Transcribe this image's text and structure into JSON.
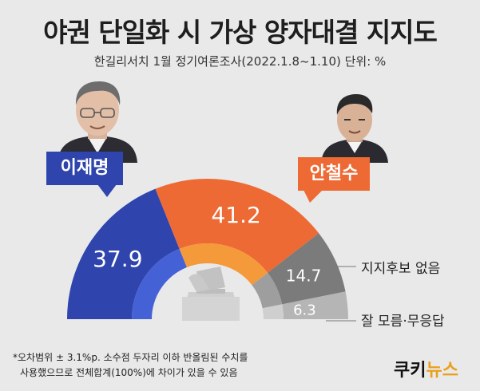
{
  "header": {
    "title": "야권 단일화 시 가상 양자대결 지지도",
    "subtitle": "한길리서치 1월 정기여론조사(2022.1.8~1.10) 단위: %"
  },
  "candidates": {
    "left_name": "이재명",
    "right_name": "안철수"
  },
  "chart_data": {
    "type": "pie",
    "style": "half-donut",
    "categories": [
      "이재명",
      "안철수",
      "지지후보 없음",
      "잘 모름·무응답"
    ],
    "values": [
      37.9,
      41.2,
      14.7,
      6.3
    ],
    "value_labels": [
      "37.9",
      "41.2",
      "14.7",
      "6.3"
    ],
    "colors": [
      "#2f45ad",
      "#ee6a34",
      "#7b7b7b",
      "#b5b5b5"
    ],
    "inner_colors": [
      "#4561d6",
      "#f59a3a",
      "#9e9e9e",
      "#cfcfcf"
    ],
    "external_labels": [
      "",
      "",
      "지지후보 없음",
      "잘 모름·무응답"
    ],
    "unit": "%"
  },
  "footnote": {
    "line1": "*오차범위 ± 3.1%p. 소수점 두자리 이하 반올림된 수치를",
    "line2": "사용했으므로 전체합계(100%)에 차이가 있을 수 있음"
  },
  "logo": {
    "part1": "쿠키",
    "part2": "뉴스"
  }
}
